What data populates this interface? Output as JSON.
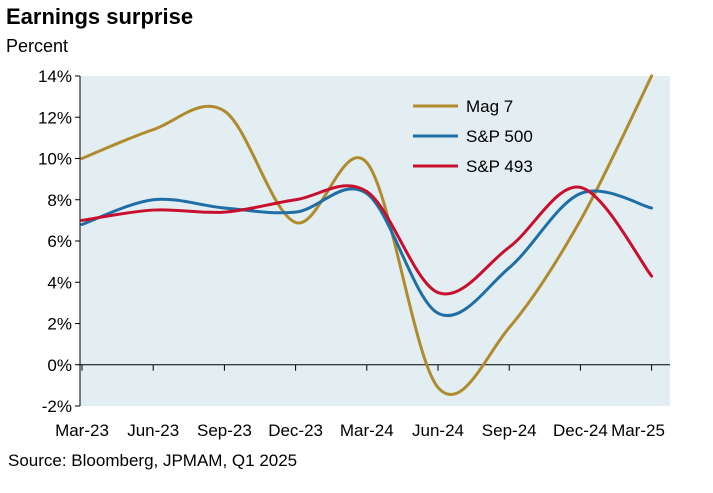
{
  "chart_data": {
    "type": "line",
    "title": "Earnings surprise",
    "ylabel": "Percent",
    "source": "Source: Bloomberg, JPMAM, Q1 2025",
    "categories": [
      "Mar-23",
      "Jun-23",
      "Sep-23",
      "Dec-23",
      "Mar-24",
      "Jun-24",
      "Sep-24",
      "Dec-24",
      "Mar-25"
    ],
    "ylim": [
      -2,
      14
    ],
    "ytick_values": [
      -2,
      0,
      2,
      4,
      6,
      8,
      10,
      12,
      14
    ],
    "yticks": [
      "-2%",
      "0%",
      "2%",
      "4%",
      "6%",
      "8%",
      "10%",
      "12%",
      "14%"
    ],
    "grid": false,
    "legend_position": "top-right",
    "series": [
      {
        "name": "Mag 7",
        "color": "#B08B2E",
        "values": [
          10.0,
          11.4,
          12.3,
          6.9,
          9.8,
          -1.1,
          1.8,
          7.0,
          14.0
        ]
      },
      {
        "name": "S&P 500",
        "color": "#1F6FA6",
        "values": [
          6.8,
          8.0,
          7.6,
          7.4,
          8.3,
          2.5,
          4.7,
          8.3,
          7.6
        ]
      },
      {
        "name": "S&P 493",
        "color": "#C8102E",
        "values": [
          7.0,
          7.5,
          7.4,
          8.0,
          8.4,
          3.5,
          5.7,
          8.6,
          4.3
        ]
      }
    ]
  }
}
